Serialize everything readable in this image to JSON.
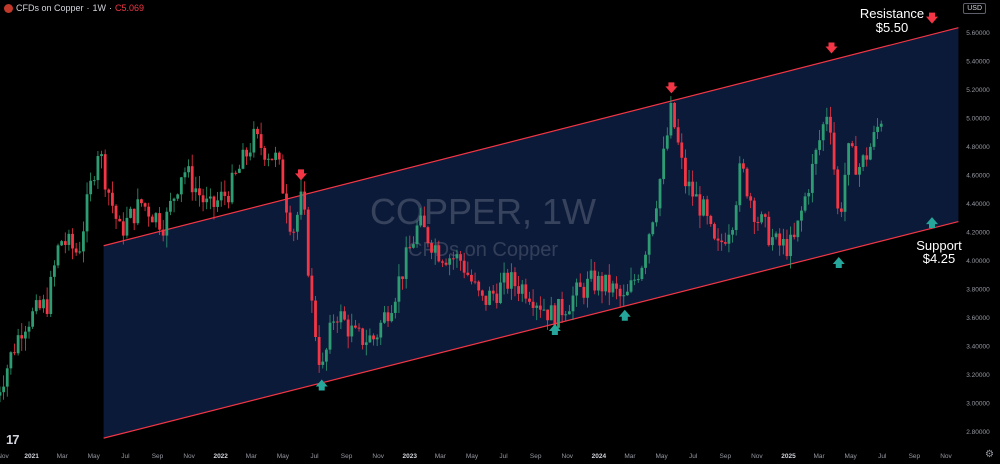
{
  "header": {
    "symbol_title": "CFDs on Copper",
    "interval": "1W",
    "close_label": "C",
    "close_value": "5.069"
  },
  "currency_button": "USD",
  "watermark": {
    "title": "COPPER, 1W",
    "subtitle": "CFDs on Copper"
  },
  "annotations": {
    "resistance_label": "Resistance",
    "resistance_value": "$5.50",
    "support_label": "Support",
    "support_value": "$4.25"
  },
  "colors": {
    "background": "#000000",
    "channel_fill": "#0c1a3a",
    "channel_line": "#f23645",
    "up_candle": "#2e9c72",
    "down_candle": "#f23645",
    "up_arrow": "#26a69a",
    "down_arrow": "#f23645",
    "axis_text": "#9598a1"
  },
  "chart_data": {
    "type": "candlestick",
    "title": "",
    "xlabel": "",
    "ylabel": "",
    "ylim": [
      2.7,
      5.7
    ],
    "y_ticks": [
      "5.60000",
      "5.40000",
      "5.20000",
      "5.00000",
      "4.80000",
      "4.60000",
      "4.40000",
      "4.20000",
      "4.00000",
      "3.80000",
      "3.60000",
      "3.40000",
      "3.20000",
      "3.00000",
      "2.80000"
    ],
    "x_ticks": [
      {
        "label": "Nov",
        "date": "2020-11-01"
      },
      {
        "label": "2021",
        "date": "2021-01-01"
      },
      {
        "label": "Mar",
        "date": "2021-03-01"
      },
      {
        "label": "May",
        "date": "2021-05-01"
      },
      {
        "label": "Jul",
        "date": "2021-07-01"
      },
      {
        "label": "Sep",
        "date": "2021-09-01"
      },
      {
        "label": "Nov",
        "date": "2021-11-01"
      },
      {
        "label": "2022",
        "date": "2022-01-01"
      },
      {
        "label": "Mar",
        "date": "2022-03-01"
      },
      {
        "label": "May",
        "date": "2022-05-01"
      },
      {
        "label": "Jul",
        "date": "2022-07-01"
      },
      {
        "label": "Sep",
        "date": "2022-09-01"
      },
      {
        "label": "Nov",
        "date": "2022-11-01"
      },
      {
        "label": "2023",
        "date": "2023-01-01"
      },
      {
        "label": "Mar",
        "date": "2023-03-01"
      },
      {
        "label": "May",
        "date": "2023-05-01"
      },
      {
        "label": "Jul",
        "date": "2023-07-01"
      },
      {
        "label": "Sep",
        "date": "2023-09-01"
      },
      {
        "label": "Nov",
        "date": "2023-11-01"
      },
      {
        "label": "2024",
        "date": "2024-01-01"
      },
      {
        "label": "Mar",
        "date": "2024-03-01"
      },
      {
        "label": "May",
        "date": "2024-05-01"
      },
      {
        "label": "Jul",
        "date": "2024-07-01"
      },
      {
        "label": "Sep",
        "date": "2024-09-01"
      },
      {
        "label": "Nov",
        "date": "2024-11-01"
      },
      {
        "label": "2025",
        "date": "2025-01-01"
      },
      {
        "label": "Mar",
        "date": "2025-03-01"
      },
      {
        "label": "May",
        "date": "2025-05-01"
      },
      {
        "label": "Jul",
        "date": "2025-07-01"
      },
      {
        "label": "Sep",
        "date": "2025-09-01"
      },
      {
        "label": "Nov",
        "date": "2025-11-01"
      }
    ],
    "price_path": [
      {
        "date": "2020-10-25",
        "price": 3.05
      },
      {
        "date": "2020-12-15",
        "price": 3.55
      },
      {
        "date": "2021-02-01",
        "price": 3.7
      },
      {
        "date": "2021-02-25",
        "price": 4.15
      },
      {
        "date": "2021-04-01",
        "price": 4.05
      },
      {
        "date": "2021-05-10",
        "price": 4.8
      },
      {
        "date": "2021-05-25",
        "price": 4.55
      },
      {
        "date": "2021-06-20",
        "price": 4.2
      },
      {
        "date": "2021-08-01",
        "price": 4.4
      },
      {
        "date": "2021-09-15",
        "price": 4.25
      },
      {
        "date": "2021-10-20",
        "price": 4.65
      },
      {
        "date": "2021-12-10",
        "price": 4.35
      },
      {
        "date": "2022-01-20",
        "price": 4.5
      },
      {
        "date": "2022-03-05",
        "price": 4.85
      },
      {
        "date": "2022-04-20",
        "price": 4.7
      },
      {
        "date": "2022-05-20",
        "price": 4.2
      },
      {
        "date": "2022-06-08",
        "price": 4.45
      },
      {
        "date": "2022-06-25",
        "price": 3.7
      },
      {
        "date": "2022-07-15",
        "price": 3.2
      },
      {
        "date": "2022-08-10",
        "price": 3.65
      },
      {
        "date": "2022-09-20",
        "price": 3.45
      },
      {
        "date": "2022-10-25",
        "price": 3.45
      },
      {
        "date": "2022-12-01",
        "price": 3.75
      },
      {
        "date": "2023-01-18",
        "price": 4.25
      },
      {
        "date": "2023-03-01",
        "price": 4.05
      },
      {
        "date": "2023-04-10",
        "price": 4.0
      },
      {
        "date": "2023-05-20",
        "price": 3.7
      },
      {
        "date": "2023-07-10",
        "price": 3.85
      },
      {
        "date": "2023-08-15",
        "price": 3.8
      },
      {
        "date": "2023-10-05",
        "price": 3.6
      },
      {
        "date": "2023-11-15",
        "price": 3.75
      },
      {
        "date": "2023-12-20",
        "price": 3.85
      },
      {
        "date": "2024-01-25",
        "price": 3.8
      },
      {
        "date": "2024-02-20",
        "price": 3.7
      },
      {
        "date": "2024-03-25",
        "price": 4.0
      },
      {
        "date": "2024-04-25",
        "price": 4.5
      },
      {
        "date": "2024-05-20",
        "price": 5.05
      },
      {
        "date": "2024-06-15",
        "price": 4.55
      },
      {
        "date": "2024-07-20",
        "price": 4.35
      },
      {
        "date": "2024-08-15",
        "price": 4.05
      },
      {
        "date": "2024-09-15",
        "price": 4.3
      },
      {
        "date": "2024-10-01",
        "price": 4.65
      },
      {
        "date": "2024-11-01",
        "price": 4.3
      },
      {
        "date": "2024-12-10",
        "price": 4.1
      },
      {
        "date": "2025-01-10",
        "price": 4.1
      },
      {
        "date": "2025-02-10",
        "price": 4.55
      },
      {
        "date": "2025-03-20",
        "price": 5.1
      },
      {
        "date": "2025-04-08",
        "price": 4.25
      },
      {
        "date": "2025-04-25",
        "price": 4.75
      },
      {
        "date": "2025-05-20",
        "price": 4.65
      },
      {
        "date": "2025-06-15",
        "price": 4.85
      },
      {
        "date": "2025-07-05",
        "price": 5.07
      }
    ],
    "channel": {
      "start_date": "2021-05-20",
      "end_date": "2025-11-25",
      "upper": [
        4.1,
        5.63
      ],
      "lower": [
        2.75,
        4.27
      ]
    },
    "markers": [
      {
        "kind": "down",
        "date": "2022-06-05",
        "price": 4.58
      },
      {
        "kind": "up",
        "date": "2022-07-15",
        "price": 3.14
      },
      {
        "kind": "up",
        "date": "2023-10-08",
        "price": 3.53
      },
      {
        "kind": "up",
        "date": "2024-02-20",
        "price": 3.63
      },
      {
        "kind": "down",
        "date": "2024-05-20",
        "price": 5.19
      },
      {
        "kind": "down",
        "date": "2025-03-25",
        "price": 5.47
      },
      {
        "kind": "up",
        "date": "2025-04-08",
        "price": 4.0
      },
      {
        "kind": "down",
        "date": "2025-10-05",
        "price": 5.68
      },
      {
        "kind": "up",
        "date": "2025-10-05",
        "price": 4.28
      }
    ]
  }
}
